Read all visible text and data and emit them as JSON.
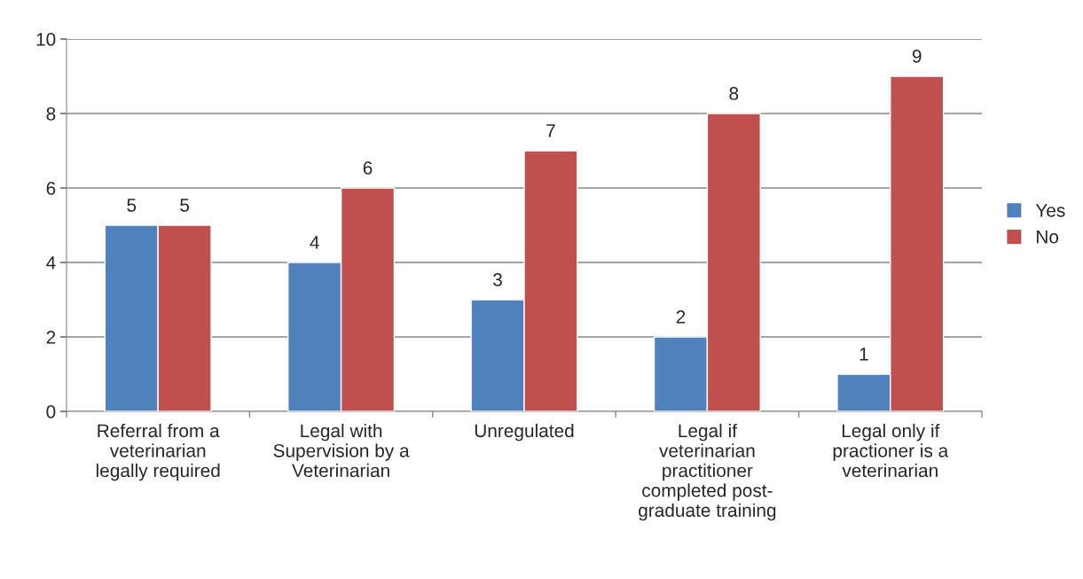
{
  "chart_data": {
    "type": "bar",
    "categories": [
      "Referral from a\nveterinarian\nlegally required",
      "Legal with\nSupervision by a\nVeterinarian",
      "Unregulated",
      "Legal if\nveterinarian\npractitioner\ncompleted post-\ngraduate training",
      "Legal only if\npractioner is a\nveterinarian"
    ],
    "series": [
      {
        "name": "Yes",
        "color": "#4f81bd",
        "values": [
          5,
          4,
          3,
          2,
          1
        ]
      },
      {
        "name": "No",
        "color": "#c0504d",
        "values": [
          5,
          6,
          7,
          8,
          9
        ]
      }
    ],
    "ylim": [
      0,
      10
    ],
    "yticks": [
      0,
      2,
      4,
      6,
      8,
      10
    ],
    "grid": "y",
    "legend": "right",
    "data_labels": true
  }
}
